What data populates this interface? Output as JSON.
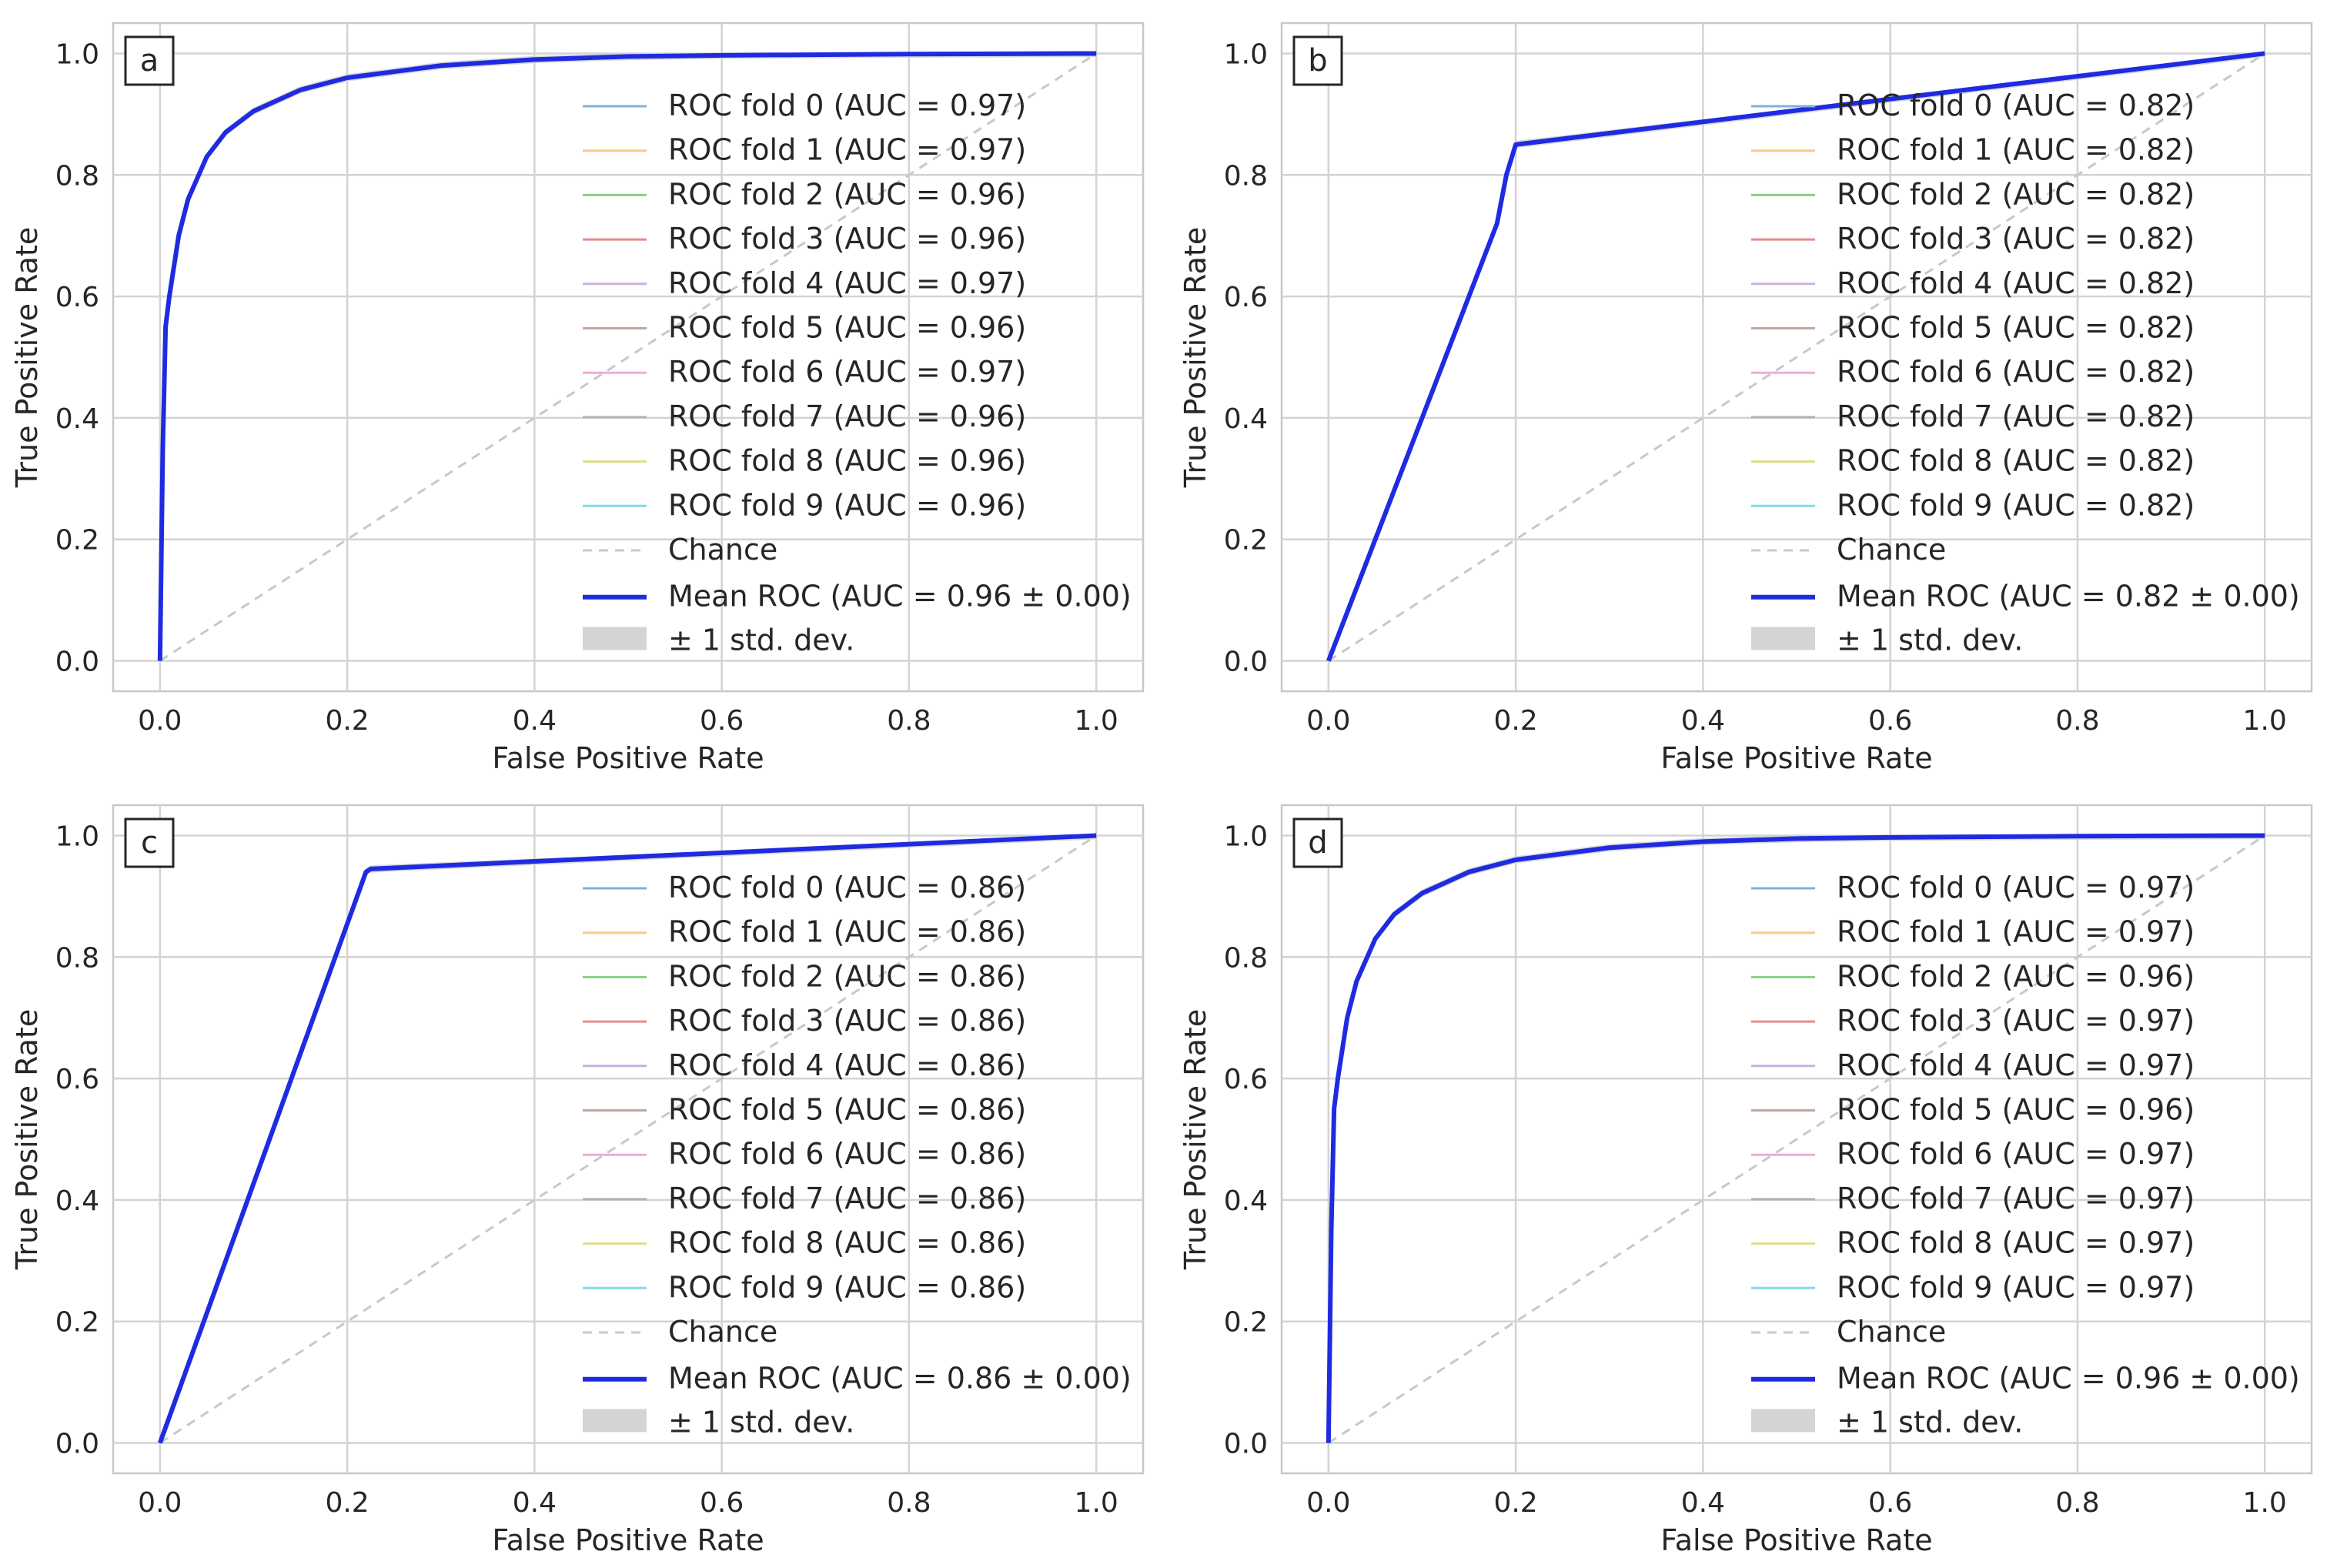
{
  "colors": {
    "fold_colors": [
      "#7fb1d9",
      "#fbc987",
      "#87cf87",
      "#e88b8b",
      "#c9b1e0",
      "#c7a59f",
      "#f0aadc",
      "#b3b3b3",
      "#dede8a",
      "#7fdce6"
    ],
    "mean": "#1f2be0",
    "chance": "#c8c8c8",
    "band": "#d4d4d4",
    "grid": "#d3d3d3",
    "frame": "#c8c8c8"
  },
  "chart_data": [
    {
      "type": "line",
      "panel_label": "a",
      "xlabel": "False Positive Rate",
      "ylabel": "True Positive Rate",
      "xlim": [
        -0.05,
        1.05
      ],
      "ylim": [
        -0.05,
        1.05
      ],
      "xticks": [
        "0.0",
        "0.2",
        "0.4",
        "0.6",
        "0.8",
        "1.0"
      ],
      "yticks": [
        "0.0",
        "0.2",
        "0.4",
        "0.6",
        "0.8",
        "1.0"
      ],
      "grid": true,
      "legend_position": "right",
      "fold_labels": [
        "ROC fold 0 (AUC = 0.97)",
        "ROC fold 1 (AUC = 0.97)",
        "ROC fold 2 (AUC = 0.96)",
        "ROC fold 3 (AUC = 0.96)",
        "ROC fold 4 (AUC = 0.97)",
        "ROC fold 5 (AUC = 0.96)",
        "ROC fold 6 (AUC = 0.97)",
        "ROC fold 7 (AUC = 0.96)",
        "ROC fold 8 (AUC = 0.96)",
        "ROC fold 9 (AUC = 0.96)"
      ],
      "chance_label": "Chance",
      "mean_label": "Mean ROC (AUC = 0.96 ± 0.00)",
      "band_label": "± 1 std. dev.",
      "mean_curve": {
        "x": [
          0,
          0.003,
          0.006,
          0.01,
          0.02,
          0.03,
          0.05,
          0.07,
          0.1,
          0.15,
          0.2,
          0.3,
          0.4,
          0.5,
          0.6,
          0.8,
          1.0
        ],
        "y": [
          0,
          0.35,
          0.55,
          0.6,
          0.7,
          0.76,
          0.83,
          0.87,
          0.905,
          0.94,
          0.96,
          0.98,
          0.99,
          0.995,
          0.997,
          0.999,
          1.0
        ]
      }
    },
    {
      "type": "line",
      "panel_label": "b",
      "xlabel": "False Positive Rate",
      "ylabel": "True Positive Rate",
      "xlim": [
        -0.05,
        1.05
      ],
      "ylim": [
        -0.05,
        1.05
      ],
      "xticks": [
        "0.0",
        "0.2",
        "0.4",
        "0.6",
        "0.8",
        "1.0"
      ],
      "yticks": [
        "0.0",
        "0.2",
        "0.4",
        "0.6",
        "0.8",
        "1.0"
      ],
      "grid": true,
      "legend_position": "right",
      "fold_labels": [
        "ROC fold 0 (AUC = 0.82)",
        "ROC fold 1 (AUC = 0.82)",
        "ROC fold 2 (AUC = 0.82)",
        "ROC fold 3 (AUC = 0.82)",
        "ROC fold 4 (AUC = 0.82)",
        "ROC fold 5 (AUC = 0.82)",
        "ROC fold 6 (AUC = 0.82)",
        "ROC fold 7 (AUC = 0.82)",
        "ROC fold 8 (AUC = 0.82)",
        "ROC fold 9 (AUC = 0.82)"
      ],
      "chance_label": "Chance",
      "mean_label": "Mean ROC (AUC = 0.82 ± 0.00)",
      "band_label": "± 1 std. dev.",
      "mean_curve": {
        "x": [
          0,
          0.17,
          0.18,
          0.19,
          0.2,
          1.0
        ],
        "y": [
          0,
          0.68,
          0.72,
          0.8,
          0.85,
          1.0
        ]
      }
    },
    {
      "type": "line",
      "panel_label": "c",
      "xlabel": "False Positive Rate",
      "ylabel": "True Positive Rate",
      "xlim": [
        -0.05,
        1.05
      ],
      "ylim": [
        -0.05,
        1.05
      ],
      "xticks": [
        "0.0",
        "0.2",
        "0.4",
        "0.6",
        "0.8",
        "1.0"
      ],
      "yticks": [
        "0.0",
        "0.2",
        "0.4",
        "0.6",
        "0.8",
        "1.0"
      ],
      "grid": true,
      "legend_position": "right",
      "fold_labels": [
        "ROC fold 0 (AUC = 0.86)",
        "ROC fold 1 (AUC = 0.86)",
        "ROC fold 2 (AUC = 0.86)",
        "ROC fold 3 (AUC = 0.86)",
        "ROC fold 4 (AUC = 0.86)",
        "ROC fold 5 (AUC = 0.86)",
        "ROC fold 6 (AUC = 0.86)",
        "ROC fold 7 (AUC = 0.86)",
        "ROC fold 8 (AUC = 0.86)",
        "ROC fold 9 (AUC = 0.86)"
      ],
      "chance_label": "Chance",
      "mean_label": "Mean ROC (AUC = 0.86 ± 0.00)",
      "band_label": "± 1 std. dev.",
      "mean_curve": {
        "x": [
          0,
          0.22,
          0.225,
          1.0
        ],
        "y": [
          0,
          0.94,
          0.945,
          1.0
        ]
      }
    },
    {
      "type": "line",
      "panel_label": "d",
      "xlabel": "False Positive Rate",
      "ylabel": "True Positive Rate",
      "xlim": [
        -0.05,
        1.05
      ],
      "ylim": [
        -0.05,
        1.05
      ],
      "xticks": [
        "0.0",
        "0.2",
        "0.4",
        "0.6",
        "0.8",
        "1.0"
      ],
      "yticks": [
        "0.0",
        "0.2",
        "0.4",
        "0.6",
        "0.8",
        "1.0"
      ],
      "grid": true,
      "legend_position": "right",
      "fold_labels": [
        "ROC fold 0 (AUC = 0.97)",
        "ROC fold 1 (AUC = 0.97)",
        "ROC fold 2 (AUC = 0.96)",
        "ROC fold 3 (AUC = 0.97)",
        "ROC fold 4 (AUC = 0.97)",
        "ROC fold 5 (AUC = 0.96)",
        "ROC fold 6 (AUC = 0.97)",
        "ROC fold 7 (AUC = 0.97)",
        "ROC fold 8 (AUC = 0.97)",
        "ROC fold 9 (AUC = 0.97)"
      ],
      "chance_label": "Chance",
      "mean_label": "Mean ROC (AUC = 0.96 ± 0.00)",
      "band_label": "± 1 std. dev.",
      "mean_curve": {
        "x": [
          0,
          0.003,
          0.006,
          0.01,
          0.02,
          0.03,
          0.05,
          0.07,
          0.1,
          0.15,
          0.2,
          0.3,
          0.4,
          0.5,
          0.6,
          0.8,
          1.0
        ],
        "y": [
          0,
          0.35,
          0.55,
          0.6,
          0.7,
          0.76,
          0.83,
          0.87,
          0.905,
          0.94,
          0.96,
          0.98,
          0.99,
          0.995,
          0.997,
          0.999,
          1.0
        ]
      }
    }
  ]
}
